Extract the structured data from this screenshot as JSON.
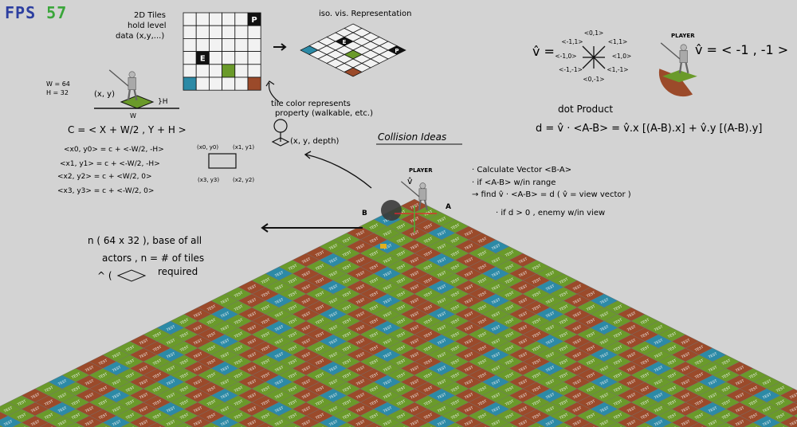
{
  "hud": {
    "fps_label": "FPS",
    "fps_value": "57"
  },
  "colors": {
    "background": "#d3d3d3",
    "tile_brown": "#9b4a2a",
    "tile_green": "#6a9a2a",
    "tile_teal": "#2c8aa6",
    "grid": "#111111"
  },
  "grid2d": {
    "caption": [
      "2D Tiles",
      "hold level",
      "data (x,y,...)"
    ],
    "letters": {
      "p": "P",
      "e": "E"
    },
    "cells": [
      [
        0,
        0,
        0,
        0,
        0,
        0,
        0
      ],
      [
        0,
        0,
        0,
        0,
        0,
        0,
        0
      ],
      [
        0,
        0,
        0,
        0,
        0,
        0,
        0
      ],
      [
        0,
        0,
        0,
        0,
        0,
        0,
        0
      ],
      [
        0,
        0,
        0,
        0,
        0,
        0,
        0
      ],
      [
        0,
        0,
        0,
        0,
        0,
        0,
        0
      ],
      [
        0,
        0,
        0,
        0,
        0,
        0,
        0
      ]
    ]
  },
  "iso_rep": {
    "caption": "iso. vis. Representation"
  },
  "tile_note": [
    "tile color represents",
    "property (walkable, etc.)"
  ],
  "depth_label": "(x, y, depth)",
  "tile_dims": {
    "w": "W = 64",
    "h": "H = 32",
    "xy": "(x, y)",
    "h_marker": "}H",
    "w_marker": "W"
  },
  "formulas": {
    "c": "C = < X + W/2 , Y + H >",
    "p0": "<x0, y0> = c + <-W/2, -H>",
    "p1": "<x1, y1> = c + <-W/2, -H>",
    "p2": "<x2, y2> = c + <W/2, 0>",
    "p3": "<x3, y3> = c + <-W/2, 0>",
    "corner_tl": "(x0, y0)",
    "corner_tr": "(x1, y1)",
    "corner_bl": "(x3, y3)",
    "corner_br": "(x2, y2)"
  },
  "collision": {
    "title": "Collision Ideas",
    "lines": [
      "· Calculate  Vector <B-A>",
      "· if <A-B> w/in range",
      "→ find  v̂ · <A-B> = d   ( v̂ = view vector )",
      "· if  d > 0 , enemy w/in view"
    ],
    "label_a": "A",
    "label_b": "B",
    "player": "PLAYER",
    "vhat": "v̂"
  },
  "note_actors": [
    "n ( 64 x 32 ), base of all",
    "actors , n = # of tiles",
    "required"
  ],
  "note_caret": "^ (",
  "view_vector": {
    "vhat_eq": "v̂ =",
    "dirs": [
      "<0,1>",
      "<-1,1>",
      "<1,1>",
      "<-1,0>",
      "<1,0>",
      "<-1,-1>",
      "<1,-1>",
      "<0,-1>"
    ],
    "player": "PLAYER",
    "result": "v̂ = < -1 , -1 >"
  },
  "dot": {
    "title": "dot Product",
    "eq": "d = v̂ · <A-B> = v̂.x [(A-B).x] + v̂.y [(A-B).y]"
  },
  "floor": {
    "tile_text": "TEST",
    "pattern": [
      "brown",
      "green",
      "teal",
      "green",
      "brown",
      "green",
      "green",
      "brown"
    ]
  }
}
